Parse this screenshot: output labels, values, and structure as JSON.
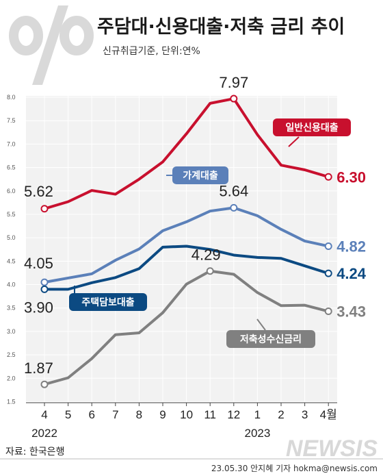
{
  "header": {
    "percent_mark": "%",
    "title": "주담대·신용대출·저축 금리 추이",
    "subtitle": "신규취급기준, 단위:연%"
  },
  "footer": {
    "source": "자료: 한국은행",
    "credit": "23.05.30 안지혜 기자  hokma@newsis.com",
    "watermark": "NEWSIS"
  },
  "chart_data": {
    "type": "line",
    "categories": [
      "4",
      "5",
      "6",
      "7",
      "8",
      "9",
      "10",
      "11",
      "12",
      "1",
      "2",
      "3",
      "4월"
    ],
    "years": [
      {
        "label": "2022",
        "at": 0
      },
      {
        "label": "2023",
        "at": 9
      }
    ],
    "ylim": [
      1.5,
      8.0
    ],
    "yticks": [
      "1.5",
      "2.0",
      "2.5",
      "3.0",
      "3.5",
      "4.0",
      "4.5",
      "5.0",
      "5.5",
      "6.0",
      "6.5",
      "7.0",
      "7.5",
      "8.0"
    ],
    "grid": true,
    "series": [
      {
        "name": "일반신용대출",
        "color": "#c8102e",
        "values": [
          5.62,
          5.77,
          6.01,
          5.93,
          6.25,
          6.62,
          7.22,
          7.87,
          7.97,
          7.2,
          6.55,
          6.45,
          6.3
        ],
        "labels": [
          {
            "i": 0,
            "text": "5.62"
          },
          {
            "i": 8,
            "text": "7.97"
          },
          {
            "i": 12,
            "text": "6.30"
          }
        ]
      },
      {
        "name": "가계대출",
        "color": "#5b80b9",
        "values": [
          4.05,
          4.14,
          4.23,
          4.52,
          4.76,
          5.15,
          5.34,
          5.57,
          5.64,
          5.47,
          5.18,
          4.93,
          4.82
        ],
        "labels": [
          {
            "i": 0,
            "text": "4.05"
          },
          {
            "i": 8,
            "text": "5.64"
          },
          {
            "i": 12,
            "text": "4.82"
          }
        ]
      },
      {
        "name": "주택담보대출",
        "color": "#0c4a82",
        "values": [
          3.9,
          3.9,
          4.04,
          4.15,
          4.34,
          4.8,
          4.82,
          4.75,
          4.63,
          4.58,
          4.56,
          4.4,
          4.24
        ],
        "labels": [
          {
            "i": 0,
            "text": "3.90"
          },
          {
            "i": 12,
            "text": "4.24"
          }
        ]
      },
      {
        "name": "저축성수신금리",
        "color": "#808080",
        "values": [
          1.87,
          2.01,
          2.42,
          2.93,
          2.97,
          3.4,
          4.01,
          4.29,
          4.22,
          3.83,
          3.55,
          3.56,
          3.43
        ],
        "labels": [
          {
            "i": 0,
            "text": "1.87"
          },
          {
            "i": 7,
            "text": "4.29"
          },
          {
            "i": 12,
            "text": "3.43"
          }
        ]
      }
    ]
  }
}
